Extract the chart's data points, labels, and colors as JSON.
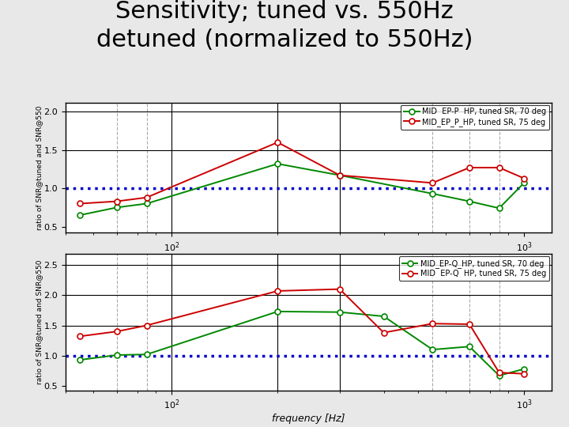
{
  "title_line1": "Sensitivity; tuned vs. 550Hz",
  "title_line2": "detuned (normalized to 550Hz)",
  "title_fontsize": 22,
  "title_color": "#000000",
  "bg_color": "#e8e8e8",
  "subplot1": {
    "ylabel": "ratio of SNR@tuned and SNR@550",
    "xlabel": "frequency [Hz]",
    "ylim": [
      0.42,
      2.12
    ],
    "yticks": [
      0.5,
      1.0,
      1.5,
      2.0
    ],
    "xlim_log": [
      50,
      1200
    ],
    "vlines_dashed": [
      70,
      85,
      550,
      700,
      850
    ],
    "vlines_solid": [
      100,
      200,
      300
    ],
    "hlines_solid": [
      1.5,
      2.0
    ],
    "legend1": "MID  EP-P  HP, tuned SR, 70 deg",
    "legend2": "MID_EP_P_HP, tuned SR, 75 deg",
    "green_x": [
      55,
      70,
      85,
      200,
      300,
      550,
      700,
      850,
      1000
    ],
    "green_y": [
      0.65,
      0.75,
      0.8,
      1.32,
      1.17,
      0.93,
      0.83,
      0.74,
      1.07
    ],
    "red_x": [
      55,
      70,
      85,
      200,
      300,
      550,
      700,
      850,
      1000
    ],
    "red_y": [
      0.8,
      0.83,
      0.88,
      1.6,
      1.17,
      1.07,
      1.27,
      1.27,
      1.13
    ]
  },
  "subplot2": {
    "ylabel": "ratio of SNR@tuned and SNR@550",
    "xlabel": "frequency [Hz]",
    "ylim": [
      0.42,
      2.68
    ],
    "yticks": [
      0.5,
      1.0,
      1.5,
      2.0,
      2.5
    ],
    "xlim_log": [
      50,
      1200
    ],
    "vlines_dashed": [
      70,
      85,
      550,
      700,
      850
    ],
    "vlines_solid": [
      100,
      200,
      300
    ],
    "hlines_solid": [
      1.5,
      2.0,
      2.5
    ],
    "legend1": "MID_EP-Q_HP, tuned SR, 70 deg",
    "legend2": "MID  EP-Q  HP, tuned SR, 75 deg",
    "green_x": [
      55,
      70,
      85,
      200,
      300,
      400,
      550,
      700,
      850,
      1000
    ],
    "green_y": [
      0.93,
      1.01,
      1.02,
      1.73,
      1.72,
      1.65,
      1.1,
      1.15,
      0.67,
      0.78
    ],
    "red_x": [
      55,
      70,
      85,
      200,
      300,
      400,
      550,
      700,
      850,
      1000
    ],
    "red_y": [
      1.32,
      1.4,
      1.5,
      2.07,
      2.1,
      1.38,
      1.53,
      1.52,
      0.72,
      0.7
    ]
  },
  "green_color": "#008800",
  "red_color": "#cc0000",
  "blue_dotted_color": "#0000cc",
  "marker": "o",
  "markersize": 5,
  "linewidth": 1.4,
  "marker_facecolor": "white"
}
